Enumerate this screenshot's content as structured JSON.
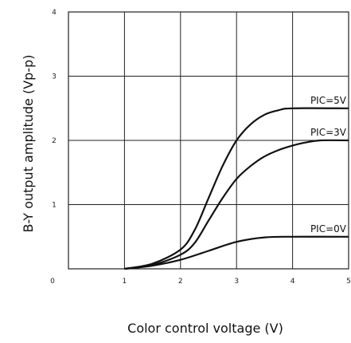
{
  "chart_data": {
    "type": "line",
    "title": "",
    "xlabel": "Color control voltage (V)",
    "ylabel": "B-Y output amplitude (Vp-p)",
    "xlim": [
      0,
      5
    ],
    "ylim": [
      0,
      4
    ],
    "x_ticks": [
      "0",
      "1",
      "2",
      "3",
      "4",
      "5"
    ],
    "y_ticks": [
      "1",
      "2",
      "3",
      "4"
    ],
    "grid": true,
    "series": [
      {
        "name": "PIC=5V",
        "points": [
          [
            1.0,
            0.0
          ],
          [
            1.5,
            0.08
          ],
          [
            2.0,
            0.3
          ],
          [
            2.25,
            0.6
          ],
          [
            2.5,
            1.1
          ],
          [
            2.75,
            1.6
          ],
          [
            3.0,
            2.0
          ],
          [
            3.25,
            2.25
          ],
          [
            3.5,
            2.4
          ],
          [
            3.75,
            2.47
          ],
          [
            4.0,
            2.5
          ],
          [
            5.0,
            2.5
          ]
        ]
      },
      {
        "name": "PIC=3V",
        "points": [
          [
            1.0,
            0.0
          ],
          [
            1.5,
            0.06
          ],
          [
            2.0,
            0.22
          ],
          [
            2.25,
            0.4
          ],
          [
            2.5,
            0.75
          ],
          [
            2.75,
            1.1
          ],
          [
            3.0,
            1.4
          ],
          [
            3.25,
            1.6
          ],
          [
            3.5,
            1.75
          ],
          [
            3.75,
            1.85
          ],
          [
            4.0,
            1.92
          ],
          [
            4.25,
            1.97
          ],
          [
            4.5,
            2.0
          ],
          [
            5.0,
            2.0
          ]
        ]
      },
      {
        "name": "PIC=0V",
        "points": [
          [
            1.0,
            0.0
          ],
          [
            1.5,
            0.05
          ],
          [
            2.0,
            0.14
          ],
          [
            2.5,
            0.28
          ],
          [
            3.0,
            0.42
          ],
          [
            3.5,
            0.49
          ],
          [
            4.0,
            0.5
          ],
          [
            5.0,
            0.5
          ]
        ]
      }
    ]
  }
}
